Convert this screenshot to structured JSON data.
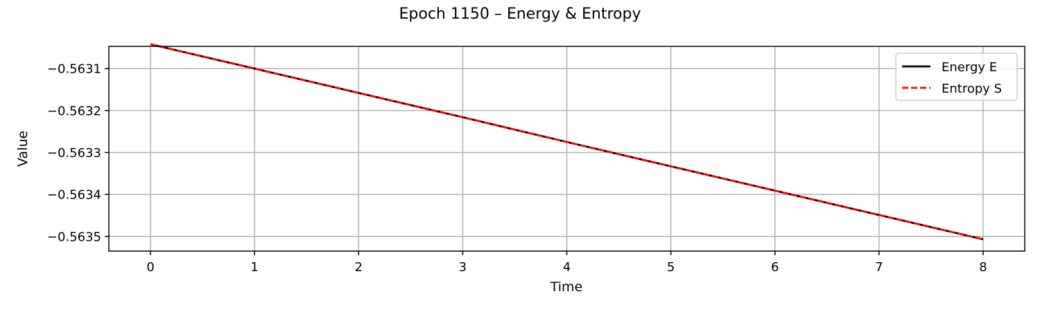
{
  "chart_data": {
    "type": "line",
    "title": "Epoch 1150 – Energy & Entropy",
    "xlabel": "Time",
    "ylabel": "Value",
    "x": [
      0,
      1,
      2,
      3,
      4,
      5,
      6,
      7,
      8
    ],
    "xlim": [
      -0.4,
      8.4
    ],
    "ylim": [
      -0.563535,
      -0.563047
    ],
    "xticks": [
      0,
      1,
      2,
      3,
      4,
      5,
      6,
      7,
      8
    ],
    "xtick_labels": [
      "0",
      "1",
      "2",
      "3",
      "4",
      "5",
      "6",
      "7",
      "8"
    ],
    "yticks": [
      -0.5631,
      -0.5632,
      -0.5633,
      -0.5634,
      -0.5635
    ],
    "ytick_labels": [
      "−0.5631",
      "−0.5632",
      "−0.5633",
      "−0.5634",
      "−0.5635"
    ],
    "grid": true,
    "legend_position": "upper right",
    "series": [
      {
        "name": "Energy E",
        "color": "#000000",
        "linestyle": "solid",
        "values": [
          -0.563042,
          -0.5631,
          -0.563158,
          -0.563216,
          -0.563275,
          -0.563333,
          -0.563391,
          -0.563449,
          -0.563507
        ]
      },
      {
        "name": "Entropy S",
        "color": "#ff0000",
        "linestyle": "dashed",
        "values": [
          -0.563042,
          -0.5631,
          -0.563158,
          -0.563216,
          -0.563275,
          -0.563333,
          -0.563391,
          -0.563449,
          -0.563507
        ]
      }
    ]
  }
}
